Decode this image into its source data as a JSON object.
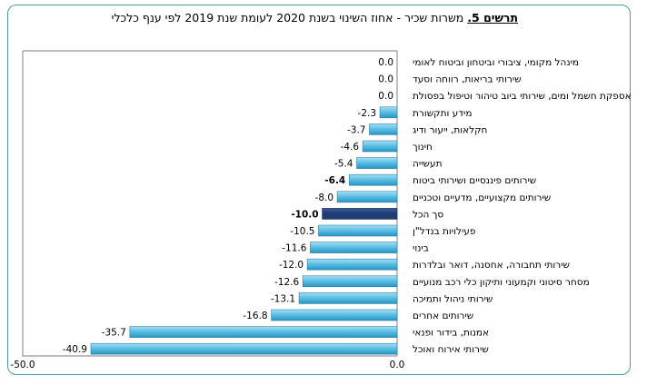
{
  "title": {
    "label": "תרשים 5.",
    "text": " משרות שכיר - אחוז השינוי בשנת 2020 לעומת שנת 2019 לפי ענף כלכלי"
  },
  "chart_data": {
    "type": "bar",
    "orientation": "horizontal",
    "categories": [
      "מינהל מקומי, ציבורי וביטחון וביטוח לאומי",
      "שירותי בריאות, רווחה וסעד",
      "אספקת חשמל ומים, שירותי ביוב טיהור וטיפול בפסולת",
      "מידע ותקשורת",
      "חקלאות, ייעור ודיג",
      "חינוך",
      "תעשייה",
      "שירותים פיננסיים ושירותי ביטוח",
      "שירותים מקצועיים, מדעיים וטכניים",
      "סך הכל",
      "פעילויות בנדל\"ן",
      "בינוי",
      "שירותי תחבורה, אחסנה, דואר ובלדרות",
      "מסחר סיטוני וקמעוני ותיקון כלי רכב מנועיים",
      "שירותי ניהול ותמיכה",
      "שירותים אחרים",
      "אמנות, בידור ופנאי",
      "שירותי אירוח ואוכל"
    ],
    "values": [
      0.0,
      0.0,
      0.0,
      -2.3,
      -3.7,
      -4.6,
      -5.4,
      -6.4,
      -8.0,
      -10.0,
      -10.5,
      -11.6,
      -12.0,
      -12.6,
      -13.1,
      -16.8,
      -35.7,
      -40.9
    ],
    "value_labels": [
      "0.0",
      "0.0",
      "0.0",
      "-2.3",
      "-3.7",
      "-4.6",
      "-5.4",
      "-6.4",
      "-8.0",
      "-10.0",
      "-10.5",
      "-11.6",
      "-12.0",
      "-12.6",
      "-13.1",
      "-16.8",
      "-35.7",
      "-40.9"
    ],
    "bold_labels": [
      7,
      9
    ],
    "highlight_index": 9,
    "xlim": [
      -50,
      0
    ],
    "x_tick_labels": [
      "-50.0",
      "0.0"
    ],
    "colors": {
      "bar": "#5bc0e6",
      "bar_light": "#a9def3",
      "bar_dark": "#2a94c0",
      "highlight": "#1f3c75",
      "highlight_light": "#3a5f9c",
      "axis": "#7f7f7f",
      "frame": "#4a9aa8"
    }
  }
}
